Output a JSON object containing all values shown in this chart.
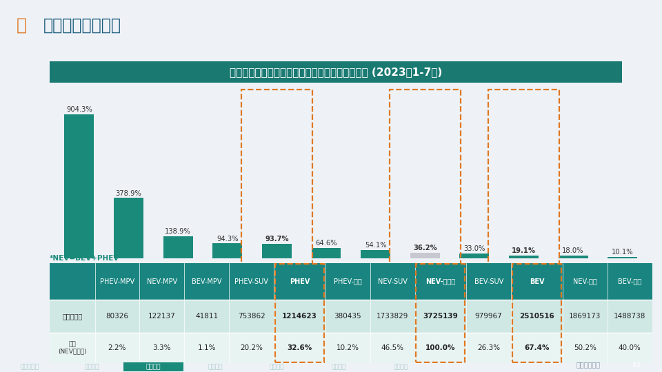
{
  "title": "新能源市场各车型不同技术类型增速、销量和份额 (2023年1-7月)",
  "page_title": "车型大类细分市场",
  "categories": [
    "PHEV-MPV",
    "NEV-MPV",
    "BEV-MPV",
    "PHEV-SUV",
    "PHEV",
    "PHEV-轿车",
    "NEV-SUV",
    "NEV-总市场",
    "BEV-SUV",
    "BEV",
    "NEV-轿车",
    "BEV-轿车"
  ],
  "values": [
    904.3,
    378.9,
    138.9,
    94.3,
    93.7,
    64.6,
    54.1,
    36.2,
    33.0,
    19.1,
    18.0,
    10.1
  ],
  "sales": [
    "80326",
    "122137",
    "41811",
    "753862",
    "1214623",
    "380435",
    "1733829",
    "3725139",
    "979967",
    "2510516",
    "1869173",
    "1488738"
  ],
  "share": [
    "2.2%",
    "3.3%",
    "1.1%",
    "20.2%",
    "32.6%",
    "10.2%",
    "46.5%",
    "100.0%",
    "26.3%",
    "67.4%",
    "50.2%",
    "40.0%"
  ],
  "bar_colors": [
    "#1a8a7a",
    "#1a8a7a",
    "#1a8a7a",
    "#1a8a7a",
    "#1a8a7a",
    "#1a8a7a",
    "#1a8a7a",
    "#c8c8d0",
    "#1a8a7a",
    "#1a8a7a",
    "#1a8a7a",
    "#1a8a7a"
  ],
  "highlight_orange": [
    4,
    7,
    9
  ],
  "bold_indices": [
    4,
    7,
    9
  ],
  "header_bg": "#1a8580",
  "header_fg": "#ffffff",
  "row_bg1": "#d0e8e4",
  "row_bg2": "#e8f4f2",
  "note": "*NEV=BEV+PHEV",
  "page_bg": "#eef2f7",
  "title_bg": "#1a7a72",
  "orange": "#e07820",
  "bottom_bar_bg": "#1e3a5f",
  "tab_labels": [
    "新能源市场",
    "技术类型",
    "车型大类",
    "细分市场",
    "销量市场",
    "出口市场",
    "企业市场"
  ],
  "active_tab": 2,
  "row_label1": "销量（辆）",
  "row_label2": "份额\n(NEV总市场)"
}
